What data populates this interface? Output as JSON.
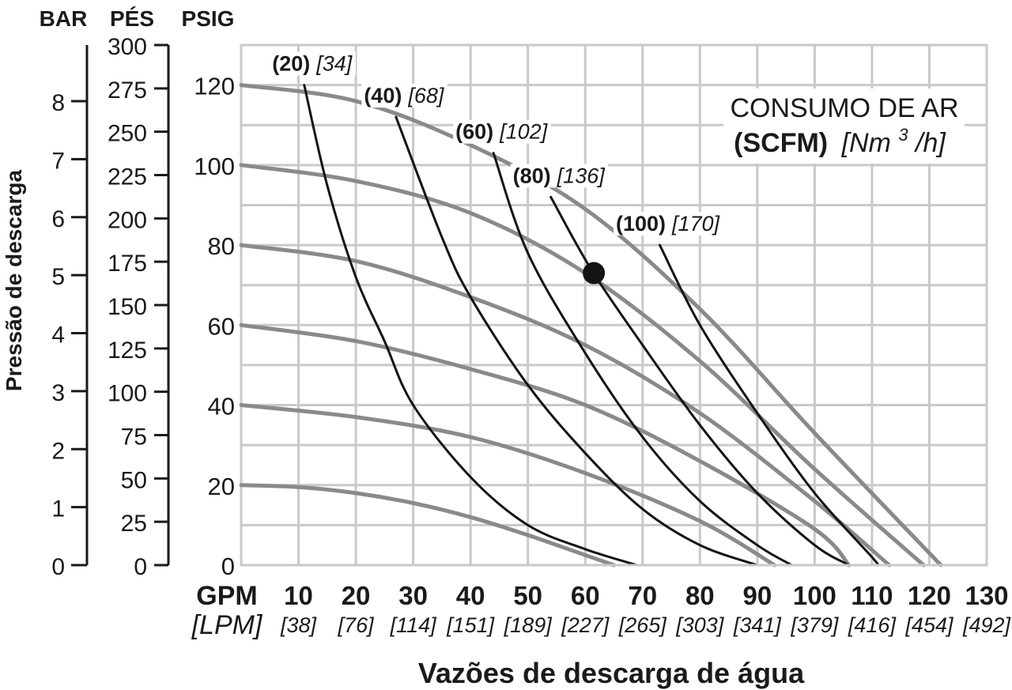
{
  "chart_data": {
    "type": "line",
    "title": "",
    "xlabel": "Vazões de descarga de água",
    "ylabel": "Pressão de descarga",
    "axis_headers": {
      "bar": "BAR",
      "ft": "PÉS",
      "psig": "PSIG"
    },
    "x_unit_label": "GPM",
    "x_unit_label_alt": "[LPM]",
    "x_ticks": [
      {
        "value": 0,
        "label": "",
        "alt": ""
      },
      {
        "value": 10,
        "label": "10",
        "alt": "[38]"
      },
      {
        "value": 20,
        "label": "20",
        "alt": "[76]"
      },
      {
        "value": 30,
        "label": "30",
        "alt": "[114]"
      },
      {
        "value": 40,
        "label": "40",
        "alt": "[151]"
      },
      {
        "value": 50,
        "label": "50",
        "alt": "[189]"
      },
      {
        "value": 60,
        "label": "60",
        "alt": "[227]"
      },
      {
        "value": 70,
        "label": "70",
        "alt": "[265]"
      },
      {
        "value": 80,
        "label": "80",
        "alt": "[303]"
      },
      {
        "value": 90,
        "label": "90",
        "alt": "[341]"
      },
      {
        "value": 100,
        "label": "100",
        "alt": "[379]"
      },
      {
        "value": 110,
        "label": "110",
        "alt": "[416]"
      },
      {
        "value": 120,
        "label": "120",
        "alt": "[454]"
      },
      {
        "value": 130,
        "label": "130",
        "alt": "[492]"
      }
    ],
    "xlim": [
      0,
      130
    ],
    "ylim_psig": [
      0,
      130
    ],
    "psig_ticks": [
      "0",
      "20",
      "40",
      "60",
      "80",
      "100",
      "120"
    ],
    "ft_ticks": [
      "0",
      "25",
      "50",
      "75",
      "100",
      "125",
      "150",
      "175",
      "200",
      "225",
      "250",
      "275",
      "300"
    ],
    "bar_ticks": [
      "0",
      "1",
      "2",
      "3",
      "4",
      "5",
      "6",
      "7",
      "8"
    ],
    "grid": true,
    "legend_title_line1": "CONSUMO DE AR",
    "legend_title_bold": "(SCFM)",
    "legend_title_italic_pre": "[Nm",
    "legend_title_sup": "3",
    "legend_title_italic_post": "/h]",
    "series": [
      {
        "name": "",
        "role": "inlet_pressure",
        "start_psig": 20,
        "points": [
          [
            0,
            20
          ],
          [
            10,
            19.5
          ],
          [
            20,
            18
          ],
          [
            30,
            15.5
          ],
          [
            40,
            12
          ],
          [
            50,
            7.5
          ],
          [
            60,
            2.5
          ],
          [
            65,
            0
          ]
        ]
      },
      {
        "name": "",
        "role": "inlet_pressure",
        "start_psig": 40,
        "points": [
          [
            0,
            40
          ],
          [
            20,
            37
          ],
          [
            40,
            32
          ],
          [
            60,
            23
          ],
          [
            80,
            11
          ],
          [
            93,
            0
          ]
        ]
      },
      {
        "name": "",
        "role": "inlet_pressure",
        "start_psig": 60,
        "points": [
          [
            0,
            60
          ],
          [
            20,
            56
          ],
          [
            40,
            49
          ],
          [
            60,
            40
          ],
          [
            80,
            26
          ],
          [
            100,
            9
          ],
          [
            106,
            0
          ]
        ]
      },
      {
        "name": "",
        "role": "inlet_pressure",
        "start_psig": 80,
        "points": [
          [
            0,
            80
          ],
          [
            20,
            76
          ],
          [
            40,
            67
          ],
          [
            60,
            55
          ],
          [
            80,
            38
          ],
          [
            100,
            16
          ],
          [
            113,
            0
          ]
        ]
      },
      {
        "name": "",
        "role": "inlet_pressure",
        "start_psig": 100,
        "points": [
          [
            0,
            100
          ],
          [
            20,
            96
          ],
          [
            40,
            88
          ],
          [
            60,
            73
          ],
          [
            80,
            51
          ],
          [
            100,
            24
          ],
          [
            119,
            0
          ]
        ]
      },
      {
        "name": "",
        "role": "inlet_pressure",
        "start_psig": 120,
        "points": [
          [
            0,
            120
          ],
          [
            20,
            116
          ],
          [
            40,
            105
          ],
          [
            60,
            89
          ],
          [
            80,
            64
          ],
          [
            100,
            33
          ],
          [
            122,
            0
          ]
        ]
      }
    ],
    "air_consumption": [
      {
        "scfm": "(20)",
        "nm3h": "[34]",
        "points": [
          [
            11,
            120
          ],
          [
            15,
            95
          ],
          [
            20,
            72
          ],
          [
            25,
            56
          ],
          [
            30,
            40
          ],
          [
            40,
            22
          ],
          [
            50,
            10
          ],
          [
            60,
            4
          ],
          [
            69,
            0
          ]
        ]
      },
      {
        "name": "",
        "scfm": "(40)",
        "nm3h": "[68]",
        "points": [
          [
            27,
            112
          ],
          [
            35,
            82
          ],
          [
            40,
            67
          ],
          [
            50,
            45
          ],
          [
            60,
            28
          ],
          [
            70,
            14
          ],
          [
            80,
            5
          ],
          [
            90,
            0
          ]
        ]
      },
      {
        "scfm": "(60)",
        "nm3h": "[102]",
        "points": [
          [
            44,
            103
          ],
          [
            50,
            78
          ],
          [
            60,
            53
          ],
          [
            70,
            32
          ],
          [
            80,
            16
          ],
          [
            90,
            5
          ],
          [
            96,
            0
          ]
        ]
      },
      {
        "scfm": "(80)",
        "nm3h": "[136]",
        "points": [
          [
            54,
            92
          ],
          [
            61,
            74
          ],
          [
            70,
            55
          ],
          [
            80,
            35
          ],
          [
            90,
            18
          ],
          [
            100,
            5
          ],
          [
            106,
            0
          ]
        ]
      },
      {
        "scfm": "(100)",
        "nm3h": "[170]",
        "points": [
          [
            73,
            80
          ],
          [
            80,
            60
          ],
          [
            90,
            38
          ],
          [
            100,
            18
          ],
          [
            110,
            2
          ],
          [
            111,
            0
          ]
        ]
      }
    ],
    "marker": {
      "x": 61.5,
      "y": 73
    }
  }
}
